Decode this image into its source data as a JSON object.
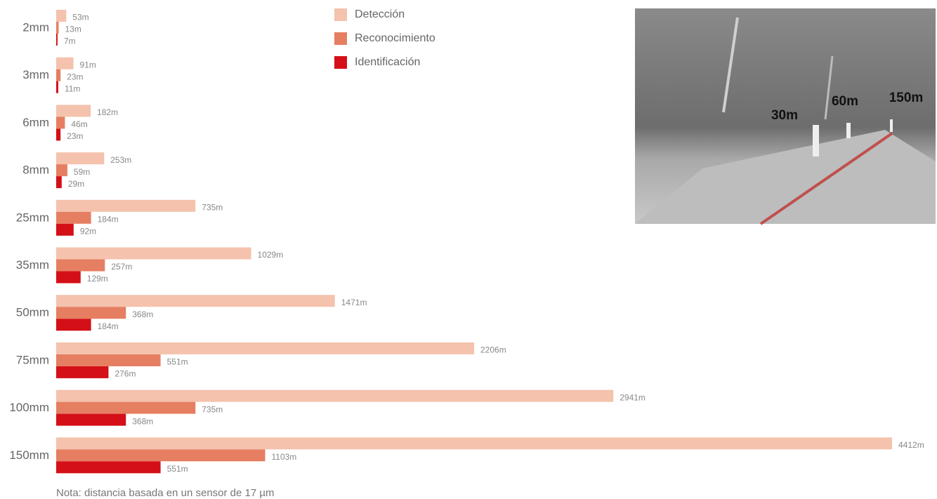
{
  "chart_data": {
    "type": "bar",
    "orientation": "horizontal",
    "categories": [
      "2mm",
      "3mm",
      "6mm",
      "8mm",
      "25mm",
      "35mm",
      "50mm",
      "75mm",
      "100mm",
      "150mm"
    ],
    "series": [
      {
        "name": "Detección",
        "color": "#f4c2ad",
        "values": [
          53,
          91,
          182,
          253,
          735,
          1029,
          1471,
          2206,
          2941,
          4412
        ],
        "value_labels": [
          "53m",
          "91m",
          "182m",
          "253m",
          "735m",
          "1029m",
          "1471m",
          "2206m",
          "2941m",
          "4412m"
        ]
      },
      {
        "name": "Reconocimiento",
        "color": "#e67e62",
        "values": [
          13,
          23,
          46,
          59,
          184,
          257,
          368,
          551,
          735,
          1103
        ],
        "value_labels": [
          "13m",
          "23m",
          "46m",
          "59m",
          "184m",
          "257m",
          "368m",
          "551m",
          "735m",
          "1103m"
        ]
      },
      {
        "name": "Identificación",
        "color": "#d40f17",
        "values": [
          7,
          11,
          23,
          29,
          92,
          129,
          184,
          276,
          368,
          551
        ],
        "value_labels": [
          "7m",
          "11m",
          "23m",
          "29m",
          "92m",
          "129m",
          "184m",
          "276m",
          "368m",
          "551m"
        ]
      }
    ],
    "note": "Nota: distancia basada en un sensor de 17 µm"
  },
  "photo": {
    "labels": [
      "30m",
      "60m",
      "150m"
    ]
  }
}
